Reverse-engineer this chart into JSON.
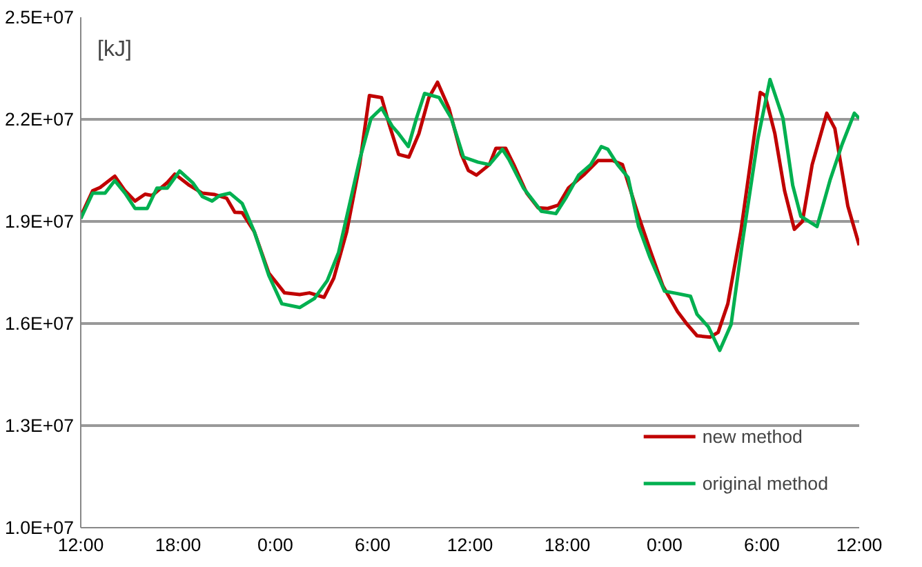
{
  "chart_data": {
    "type": "line",
    "annotations": [
      "[kJ]"
    ],
    "xlim": [
      "2000-01-01T12:00",
      "2000-01-03T12:00"
    ],
    "xticks": [
      {
        "value": "2000-01-01T12:00",
        "label": "12:00"
      },
      {
        "value": "2000-01-01T18:00",
        "label": "18:00"
      },
      {
        "value": "2000-01-02T00:00",
        "label": "0:00"
      },
      {
        "value": "2000-01-02T06:00",
        "label": "6:00"
      },
      {
        "value": "2000-01-02T12:00",
        "label": "12:00"
      },
      {
        "value": "2000-01-02T18:00",
        "label": "18:00"
      },
      {
        "value": "2000-01-03T00:00",
        "label": "0:00"
      },
      {
        "value": "2000-01-03T06:00",
        "label": "6:00"
      },
      {
        "value": "2000-01-03T12:00",
        "label": "12:00"
      }
    ],
    "ylim": [
      10000000,
      25000000
    ],
    "yticks": [
      {
        "value": 10000000,
        "label": "1.0E+07"
      },
      {
        "value": 13000000,
        "label": "1.3E+07"
      },
      {
        "value": 16000000,
        "label": "1.6E+07"
      },
      {
        "value": 19000000,
        "label": "1.9E+07"
      },
      {
        "value": 22000000,
        "label": "2.2E+07"
      },
      {
        "value": 25000000,
        "label": "2.5E+07"
      }
    ],
    "grid": "y",
    "legend": "bottom right",
    "line_style": "solid",
    "marker": "none",
    "series": [
      {
        "name": "new method",
        "color": "#c00000",
        "x": [
          "2000-01-01T12:00",
          "2000-01-01T12:44",
          "2000-01-01T13:12",
          "2000-01-01T14:06",
          "2000-01-01T14:44",
          "2000-01-01T15:21",
          "2000-01-01T15:58",
          "2000-01-01T16:24",
          "2000-01-01T17:20",
          "2000-01-01T17:48",
          "2000-01-01T18:42",
          "2000-01-01T19:30",
          "2000-01-01T20:16",
          "2000-01-01T21:00",
          "2000-01-01T21:30",
          "2000-01-01T21:57",
          "2000-01-01T22:42",
          "2000-01-01T23:36",
          "2000-01-02T00:34",
          "2000-01-02T01:30",
          "2000-01-02T02:06",
          "2000-01-02T03:00",
          "2000-01-02T03:36",
          "2000-01-02T04:24",
          "2000-01-02T05:12",
          "2000-01-02T05:48",
          "2000-01-02T06:33",
          "2000-01-02T07:00",
          "2000-01-02T07:36",
          "2000-01-02T08:14",
          "2000-01-02T08:51",
          "2000-01-02T09:28",
          "2000-01-02T10:00",
          "2000-01-02T10:42",
          "2000-01-02T11:28",
          "2000-01-02T11:54",
          "2000-01-02T12:24",
          "2000-01-02T13:12",
          "2000-01-02T13:36",
          "2000-01-02T14:12",
          "2000-01-02T14:42",
          "2000-01-02T15:30",
          "2000-01-02T16:12",
          "2000-01-02T16:48",
          "2000-01-02T17:27",
          "2000-01-02T18:04",
          "2000-01-02T19:00",
          "2000-01-02T19:54",
          "2000-01-02T20:48",
          "2000-01-02T21:24",
          "2000-01-02T22:24",
          "2000-01-02T23:06",
          "2000-01-02T23:54",
          "2000-01-03T00:48",
          "2000-01-03T01:24",
          "2000-01-03T02:00",
          "2000-01-03T02:48",
          "2000-01-03T03:18",
          "2000-01-03T03:54",
          "2000-01-03T04:42",
          "2000-01-03T05:30",
          "2000-01-03T05:54",
          "2000-01-03T06:12",
          "2000-01-03T06:48",
          "2000-01-03T07:24",
          "2000-01-03T08:00",
          "2000-01-03T08:30",
          "2000-01-03T09:06",
          "2000-01-03T10:00",
          "2000-01-03T10:30",
          "2000-01-03T11:18",
          "2000-01-03T12:00"
        ],
        "values": [
          19150000,
          19900000,
          20000000,
          20330000,
          19900000,
          19600000,
          19800000,
          19760000,
          20140000,
          20390000,
          20060000,
          19830000,
          19790000,
          19680000,
          19270000,
          19260000,
          18700000,
          17480000,
          16900000,
          16850000,
          16900000,
          16770000,
          17330000,
          18700000,
          20670000,
          22700000,
          22640000,
          21880000,
          20970000,
          20890000,
          21580000,
          22640000,
          23090000,
          22330000,
          20970000,
          20500000,
          20360000,
          20670000,
          21150000,
          21150000,
          20670000,
          19830000,
          19400000,
          19380000,
          19480000,
          19980000,
          20360000,
          20790000,
          20790000,
          20670000,
          19150000,
          18170000,
          17100000,
          16350000,
          15970000,
          15640000,
          15600000,
          15740000,
          16580000,
          18700000,
          21420000,
          22790000,
          22700000,
          21580000,
          19900000,
          18770000,
          19000000,
          20670000,
          22180000,
          21730000,
          19450000,
          18300000
        ]
      },
      {
        "name": "original method",
        "color": "#00b050",
        "x": [
          "2000-01-01T12:00",
          "2000-01-01T12:44",
          "2000-01-01T13:30",
          "2000-01-01T14:06",
          "2000-01-01T14:44",
          "2000-01-01T15:21",
          "2000-01-01T16:06",
          "2000-01-01T16:42",
          "2000-01-01T17:20",
          "2000-01-01T18:06",
          "2000-01-01T18:54",
          "2000-01-01T19:30",
          "2000-01-01T20:06",
          "2000-01-01T20:34",
          "2000-01-01T21:12",
          "2000-01-01T21:57",
          "2000-01-01T22:42",
          "2000-01-01T23:36",
          "2000-01-02T00:24",
          "2000-01-02T01:30",
          "2000-01-02T02:24",
          "2000-01-02T03:12",
          "2000-01-02T03:54",
          "2000-01-02T04:33",
          "2000-01-02T05:12",
          "2000-01-02T05:54",
          "2000-01-02T06:33",
          "2000-01-02T07:12",
          "2000-01-02T07:36",
          "2000-01-02T08:12",
          "2000-01-02T08:42",
          "2000-01-02T09:12",
          "2000-01-02T10:06",
          "2000-01-02T10:51",
          "2000-01-02T11:36",
          "2000-01-02T12:30",
          "2000-01-02T13:12",
          "2000-01-02T14:00",
          "2000-01-02T14:24",
          "2000-01-02T15:18",
          "2000-01-02T16:24",
          "2000-01-02T17:18",
          "2000-01-02T17:54",
          "2000-01-02T18:42",
          "2000-01-02T19:27",
          "2000-01-02T20:06",
          "2000-01-02T20:30",
          "2000-01-02T21:06",
          "2000-01-02T21:45",
          "2000-01-02T22:24",
          "2000-01-02T23:06",
          "2000-01-03T00:00",
          "2000-01-03T00:48",
          "2000-01-03T01:36",
          "2000-01-03T02:00",
          "2000-01-03T02:42",
          "2000-01-03T03:24",
          "2000-01-03T04:06",
          "2000-01-03T04:48",
          "2000-01-03T05:45",
          "2000-01-03T06:30",
          "2000-01-03T07:18",
          "2000-01-03T07:54",
          "2000-01-03T08:24",
          "2000-01-03T09:24",
          "2000-01-03T10:12",
          "2000-01-03T10:57",
          "2000-01-03T11:42",
          "2000-01-03T12:00"
        ],
        "values": [
          19080000,
          19830000,
          19830000,
          20200000,
          19830000,
          19380000,
          19380000,
          19980000,
          19980000,
          20480000,
          20140000,
          19730000,
          19600000,
          19760000,
          19830000,
          19530000,
          18700000,
          17410000,
          16580000,
          16470000,
          16730000,
          17260000,
          18090000,
          19450000,
          20820000,
          22030000,
          22330000,
          21800000,
          21580000,
          21200000,
          22030000,
          22760000,
          22640000,
          22030000,
          20890000,
          20740000,
          20670000,
          21120000,
          20820000,
          19980000,
          19300000,
          19230000,
          19680000,
          20360000,
          20670000,
          21200000,
          21120000,
          20670000,
          20290000,
          18850000,
          17940000,
          16950000,
          16880000,
          16800000,
          16270000,
          15900000,
          15210000,
          15970000,
          18390000,
          21420000,
          23170000,
          22030000,
          20060000,
          19150000,
          18850000,
          20210000,
          21270000,
          22180000,
          22030000
        ]
      }
    ]
  }
}
